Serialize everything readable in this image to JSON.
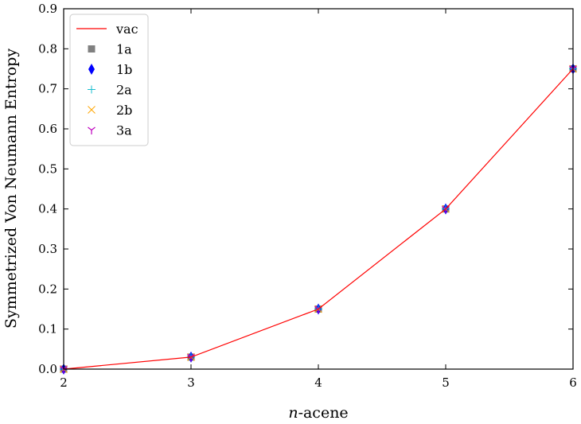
{
  "chart_data": {
    "type": "line",
    "title": "",
    "xlabel_italic": "n",
    "xlabel_rest": "-acene",
    "ylabel": "Symmetrized Von Neumann Entropy",
    "xlim": [
      2,
      6
    ],
    "ylim": [
      0,
      0.9
    ],
    "x_ticks": [
      "2",
      "3",
      "4",
      "5",
      "6"
    ],
    "y_ticks": [
      "0.0",
      "0.1",
      "0.2",
      "0.3",
      "0.4",
      "0.5",
      "0.6",
      "0.7",
      "0.8",
      "0.9"
    ],
    "x": [
      2,
      3,
      4,
      5,
      6
    ],
    "grid": false,
    "legend_position": "top-left",
    "series": [
      {
        "name": "vac",
        "marker": "line",
        "color": "#ff0000",
        "values": [
          0.0,
          0.03,
          0.15,
          0.4,
          0.75
        ]
      },
      {
        "name": "1a",
        "marker": "square",
        "color": "#808080",
        "values": [
          0.0,
          0.03,
          0.15,
          0.4,
          0.75
        ]
      },
      {
        "name": "1b",
        "marker": "thin-diamond",
        "color": "#0000ff",
        "values": [
          0.0,
          0.03,
          0.15,
          0.4,
          0.75
        ]
      },
      {
        "name": "2a",
        "marker": "plus",
        "color": "#17becf",
        "values": [
          0.0,
          0.03,
          0.15,
          0.4,
          0.75
        ]
      },
      {
        "name": "2b",
        "marker": "x",
        "color": "#ffa500",
        "values": [
          0.0,
          0.03,
          0.15,
          0.4,
          0.75
        ]
      },
      {
        "name": "3a",
        "marker": "tri-down",
        "color": "#bf00bf",
        "values": [
          0.0,
          0.03,
          0.15,
          0.4,
          0.75
        ]
      }
    ]
  }
}
